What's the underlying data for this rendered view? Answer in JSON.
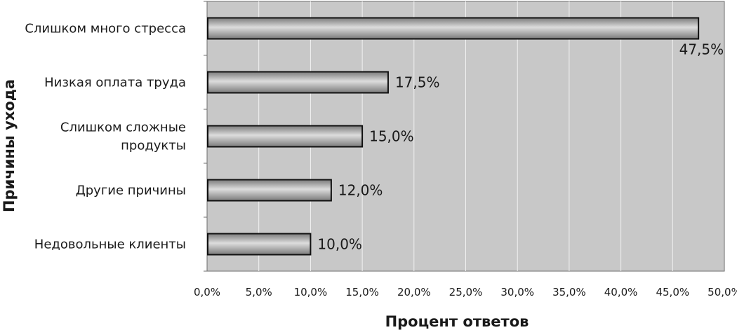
{
  "chart_data": {
    "type": "bar",
    "orientation": "horizontal",
    "categories": [
      [
        "Слишком много стресса"
      ],
      [
        "Низкая оплата труда"
      ],
      [
        "Слишком сложные",
        "продукты"
      ],
      [
        "Другие причины"
      ],
      [
        "Недовольные клиенты"
      ]
    ],
    "values": [
      47.5,
      17.5,
      15.0,
      12.0,
      10.0
    ],
    "data_labels": [
      "47,5%",
      "17,5%",
      "15,0%",
      "12,0%",
      "10,0%"
    ],
    "xlabel": "Процент ответов",
    "ylabel": "Причины ухода",
    "xlim": [
      0,
      50
    ],
    "xticks": [
      0,
      5,
      10,
      15,
      20,
      25,
      30,
      35,
      40,
      45,
      50
    ],
    "xtick_labels": [
      "0,0%",
      "5,0%",
      "10,0%",
      "15,0%",
      "20,0%",
      "25,0%",
      "30,0%",
      "35,0%",
      "40,0%",
      "45,0%",
      "50,0%"
    ],
    "grid": "vertical",
    "legend": "none",
    "colors": {
      "plot_background": "#c8c8c8",
      "bar_dark": "#7a7a7a",
      "bar_light": "#dddddd",
      "bar_outline": "#111111",
      "gridline": "#f2f2f2"
    }
  }
}
